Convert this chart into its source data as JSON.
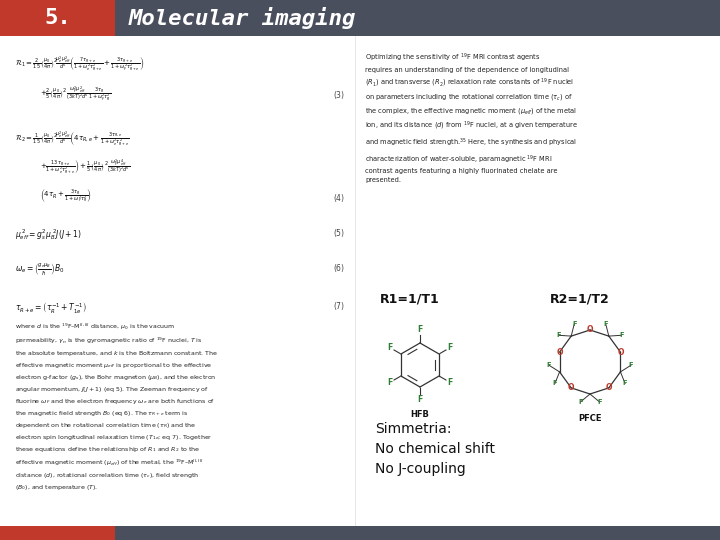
{
  "title_number": "5.",
  "title_text": "Molecular imaging",
  "title_bg_color": "#4a4f5e",
  "title_num_bg_color": "#c0392b",
  "title_text_color": "#ffffff",
  "title_num_color": "#ffffff",
  "bg_color": "#ffffff",
  "footer_color": "#4a4f5e",
  "footer_red_color": "#c0392b",
  "label_r1": "R1=1/T1",
  "label_r2": "R2=1/T2",
  "simmetria_lines": [
    "Simmetria:",
    "No chemical shift",
    "No J-coupling"
  ],
  "hfb_label": "HFB",
  "pfce_label": "PFCE",
  "f_color": "#2e7d32",
  "o_color": "#c0392b",
  "bond_color": "#333333"
}
